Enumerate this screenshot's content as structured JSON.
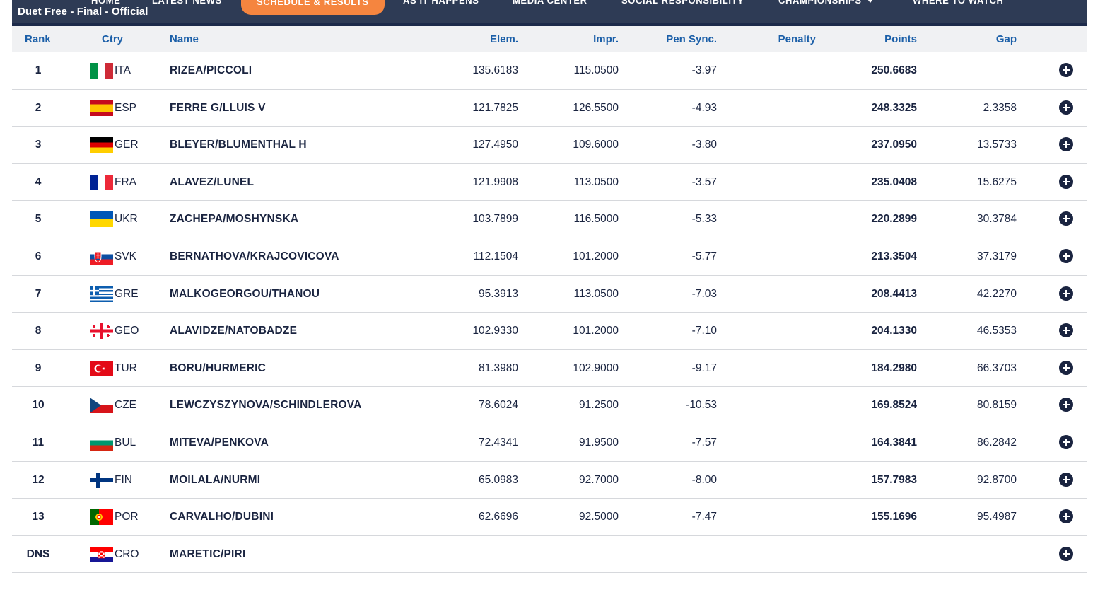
{
  "nav": {
    "items": [
      "HOME",
      "LATEST NEWS",
      "SCHEDULE & RESULTS",
      "AS IT HAPPENS",
      "MEDIA CENTER",
      "SOCIAL RESPONSIBILITY",
      "CHAMPIONSHIPS",
      "WHERE TO WATCH"
    ],
    "active": "SCHEDULE & RESULTS"
  },
  "event": {
    "subtitle": "Duet Free - Final  -  Official"
  },
  "table": {
    "headers": {
      "rank": "Rank",
      "ctry": "Ctry",
      "name": "Name",
      "elem": "Elem.",
      "impr": "Impr.",
      "pen_sync": "Pen Sync.",
      "penalty": "Penalty",
      "points": "Points",
      "gap": "Gap"
    },
    "rows": [
      {
        "rank": "1",
        "flag": "flag-italy-icon",
        "ctry": "ITA",
        "name": "RIZEA/PICCOLI",
        "elem": "135.6183",
        "impr": "115.0500",
        "pen_sync": "-3.97",
        "penalty": "",
        "points": "250.6683",
        "gap": ""
      },
      {
        "rank": "2",
        "flag": "flag-spain-icon",
        "ctry": "ESP",
        "name": "FERRE G/LLUIS V",
        "elem": "121.7825",
        "impr": "126.5500",
        "pen_sync": "-4.93",
        "penalty": "",
        "points": "248.3325",
        "gap": "2.3358"
      },
      {
        "rank": "3",
        "flag": "flag-germany-icon",
        "ctry": "GER",
        "name": "BLEYER/BLUMENTHAL H",
        "elem": "127.4950",
        "impr": "109.6000",
        "pen_sync": "-3.80",
        "penalty": "",
        "points": "237.0950",
        "gap": "13.5733"
      },
      {
        "rank": "4",
        "flag": "flag-france-icon",
        "ctry": "FRA",
        "name": "ALAVEZ/LUNEL",
        "elem": "121.9908",
        "impr": "113.0500",
        "pen_sync": "-3.57",
        "penalty": "",
        "points": "235.0408",
        "gap": "15.6275"
      },
      {
        "rank": "5",
        "flag": "flag-ukraine-icon",
        "ctry": "UKR",
        "name": "ZACHEPA/MOSHYNSKA",
        "elem": "103.7899",
        "impr": "116.5000",
        "pen_sync": "-5.33",
        "penalty": "",
        "points": "220.2899",
        "gap": "30.3784"
      },
      {
        "rank": "6",
        "flag": "flag-slovakia-icon",
        "ctry": "SVK",
        "name": "BERNATHOVA/KRAJCOVICOVA",
        "elem": "112.1504",
        "impr": "101.2000",
        "pen_sync": "-5.77",
        "penalty": "",
        "points": "213.3504",
        "gap": "37.3179"
      },
      {
        "rank": "7",
        "flag": "flag-greece-icon",
        "ctry": "GRE",
        "name": "MALKOGEORGOU/THANOU",
        "elem": "95.3913",
        "impr": "113.0500",
        "pen_sync": "-7.03",
        "penalty": "",
        "points": "208.4413",
        "gap": "42.2270"
      },
      {
        "rank": "8",
        "flag": "flag-georgia-icon",
        "ctry": "GEO",
        "name": "ALAVIDZE/NATOBADZE",
        "elem": "102.9330",
        "impr": "101.2000",
        "pen_sync": "-7.10",
        "penalty": "",
        "points": "204.1330",
        "gap": "46.5353"
      },
      {
        "rank": "9",
        "flag": "flag-turkey-icon",
        "ctry": "TUR",
        "name": "BORU/HURMERIC",
        "elem": "81.3980",
        "impr": "102.9000",
        "pen_sync": "-9.17",
        "penalty": "",
        "points": "184.2980",
        "gap": "66.3703"
      },
      {
        "rank": "10",
        "flag": "flag-czechia-icon",
        "ctry": "CZE",
        "name": "LEWCZYSZYNOVA/SCHINDLEROVA",
        "elem": "78.6024",
        "impr": "91.2500",
        "pen_sync": "-10.53",
        "penalty": "",
        "points": "169.8524",
        "gap": "80.8159"
      },
      {
        "rank": "11",
        "flag": "flag-bulgaria-icon",
        "ctry": "BUL",
        "name": "MITEVA/PENKOVA",
        "elem": "72.4341",
        "impr": "91.9500",
        "pen_sync": "-7.57",
        "penalty": "",
        "points": "164.3841",
        "gap": "86.2842"
      },
      {
        "rank": "12",
        "flag": "flag-finland-icon",
        "ctry": "FIN",
        "name": "MOILALA/NURMI",
        "elem": "65.0983",
        "impr": "92.7000",
        "pen_sync": "-8.00",
        "penalty": "",
        "points": "157.7983",
        "gap": "92.8700"
      },
      {
        "rank": "13",
        "flag": "flag-portugal-icon",
        "ctry": "POR",
        "name": "CARVALHO/DUBINI",
        "elem": "62.6696",
        "impr": "92.5000",
        "pen_sync": "-7.47",
        "penalty": "",
        "points": "155.1696",
        "gap": "95.4987"
      },
      {
        "rank": "DNS",
        "flag": "flag-croatia-icon",
        "ctry": "CRO",
        "name": "MARETIC/PIRI",
        "elem": "",
        "impr": "",
        "pen_sync": "",
        "penalty": "",
        "points": "",
        "gap": ""
      }
    ]
  },
  "colors": {
    "header_text": "#1b5fa8",
    "nav_bg": "#2e3b55",
    "nav_active": "#f5853f",
    "row_text": "#1a2440"
  }
}
